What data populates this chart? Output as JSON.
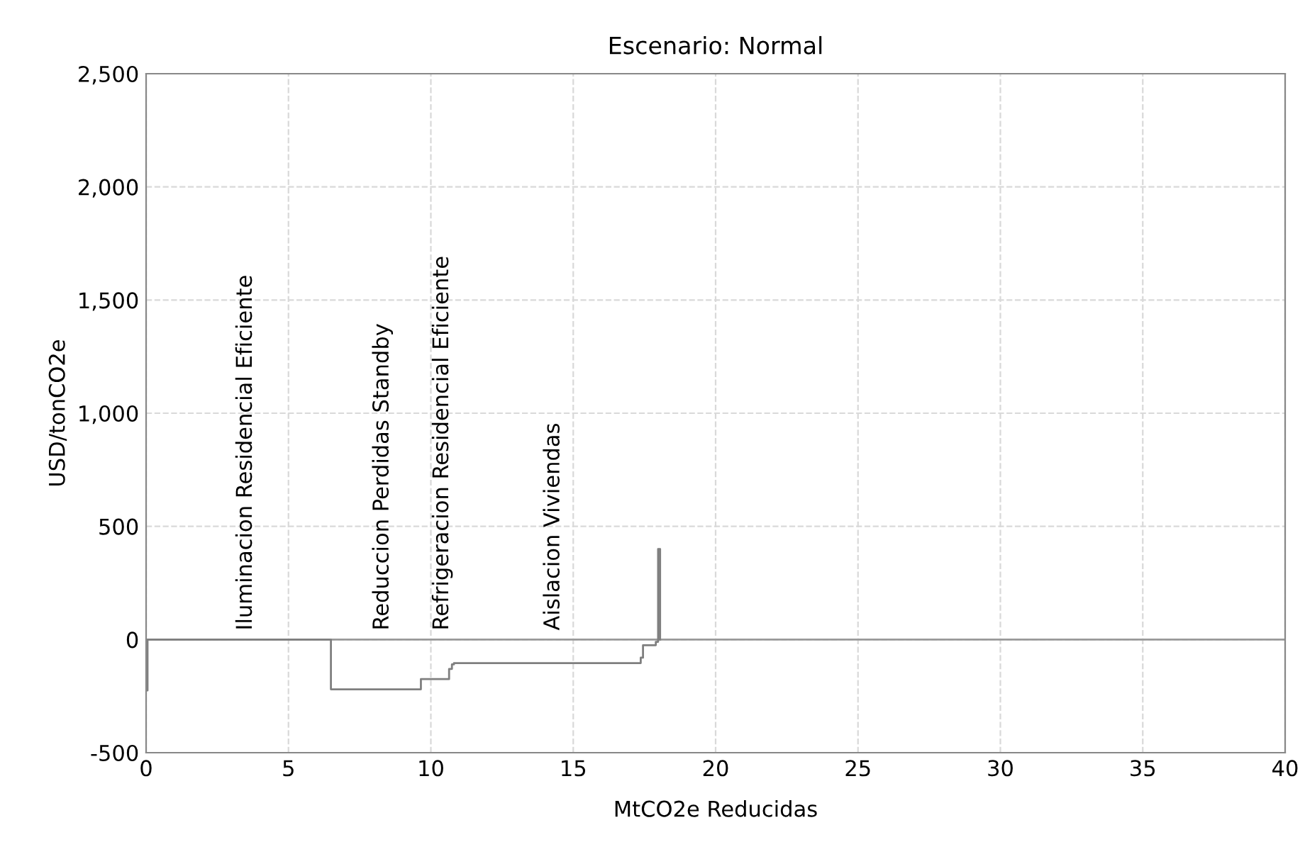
{
  "chart_data": {
    "type": "step",
    "title": "Escenario: Normal",
    "xlabel": "MtCO2e Reducidas",
    "ylabel": "USD/tonCO2e",
    "x": [
      0,
      0.05,
      6.49,
      9.65,
      10.64,
      10.74,
      10.81,
      17.37,
      17.45,
      17.9,
      17.98,
      18.05
    ],
    "series": [
      {
        "color": "#7f7f7f",
        "values": [
          -225,
          0,
          -220,
          -175,
          -130,
          -110,
          -104,
          -80,
          -25,
          -10,
          400,
          0
        ]
      }
    ],
    "xlim": [
      0,
      40
    ],
    "xticks": [
      0,
      5,
      10,
      15,
      20,
      25,
      30,
      35,
      40
    ],
    "ylim": [
      -500,
      2500
    ],
    "yticks": [
      {
        "value": -500,
        "label": "-500"
      },
      {
        "value": 0,
        "label": "0"
      },
      {
        "value": 500,
        "label": "500"
      },
      {
        "value": 1000,
        "label": "1,000"
      },
      {
        "value": 1500,
        "label": "1,500"
      },
      {
        "value": 2000,
        "label": "2,000"
      },
      {
        "value": 2500,
        "label": "2,500"
      }
    ],
    "grid": true,
    "line_style": "solid",
    "marker": "none",
    "annotations": [
      "Iluminacion Residencial Eficiente",
      "Reduccion Perdidas Standby",
      "Refrigeracion Residencial Eficiente",
      "Aislacion Viviendas"
    ]
  }
}
